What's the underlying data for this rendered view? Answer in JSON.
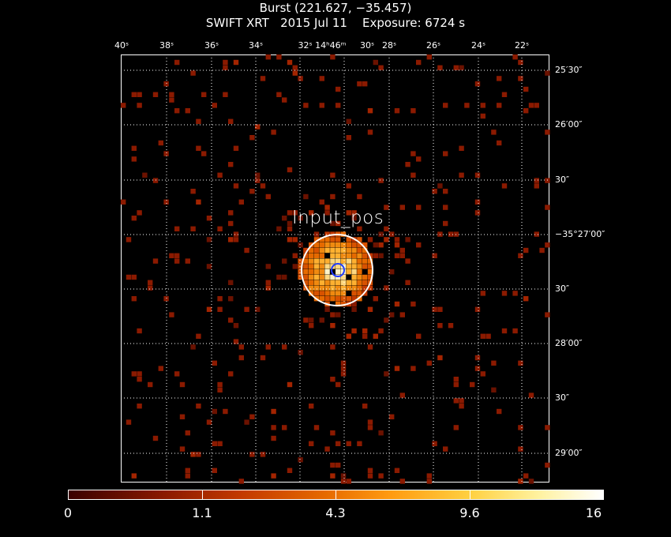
{
  "header": {
    "title": "Burst (221.627, −35.457)",
    "subtitle": "SWIFT XRT   2015 Jul 11    Exposure: 6724 s"
  },
  "axes": {
    "ra_ticks": [
      "40ˢ",
      "38ˢ",
      "36ˢ",
      "34ˢ",
      "32ˢ 14ʰ46ᵐ",
      "30ˢ",
      "28ˢ",
      "26ˢ",
      "24ˢ",
      "22ˢ"
    ],
    "dec_ticks": [
      "25′30″",
      "26′00″",
      "30″",
      "−35°27′00″",
      "30″",
      "28′00″",
      "30″",
      "29′00″"
    ]
  },
  "annotation": {
    "source_label": "Input_pos"
  },
  "colorbar": {
    "ticks": [
      "0",
      "1.1",
      "4.3",
      "9.6",
      "16"
    ],
    "colormap": "heat",
    "min": 0,
    "max": 16
  },
  "colors": {
    "background": "#000000",
    "grid": "#ffffff",
    "circle": "#ffffff",
    "marker": "#1e3cff",
    "low": "#8b1a00",
    "mid": "#e66a00",
    "high": "#ffffff"
  }
}
